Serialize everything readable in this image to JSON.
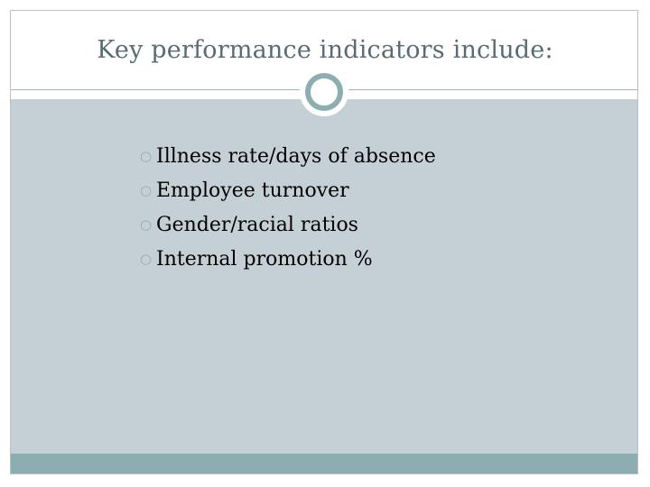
{
  "slide": {
    "title": "Key performance indicators include:",
    "accent_color": "#8daeb0",
    "content_background": "#c5d0d6",
    "bullet_icon": "ring-bullet-icon",
    "bullets": [
      {
        "text": "Illness rate/days of absence"
      },
      {
        "text": "Employee turnover"
      },
      {
        "text": "Gender/racial ratios"
      },
      {
        "text": "Internal promotion %"
      }
    ]
  }
}
